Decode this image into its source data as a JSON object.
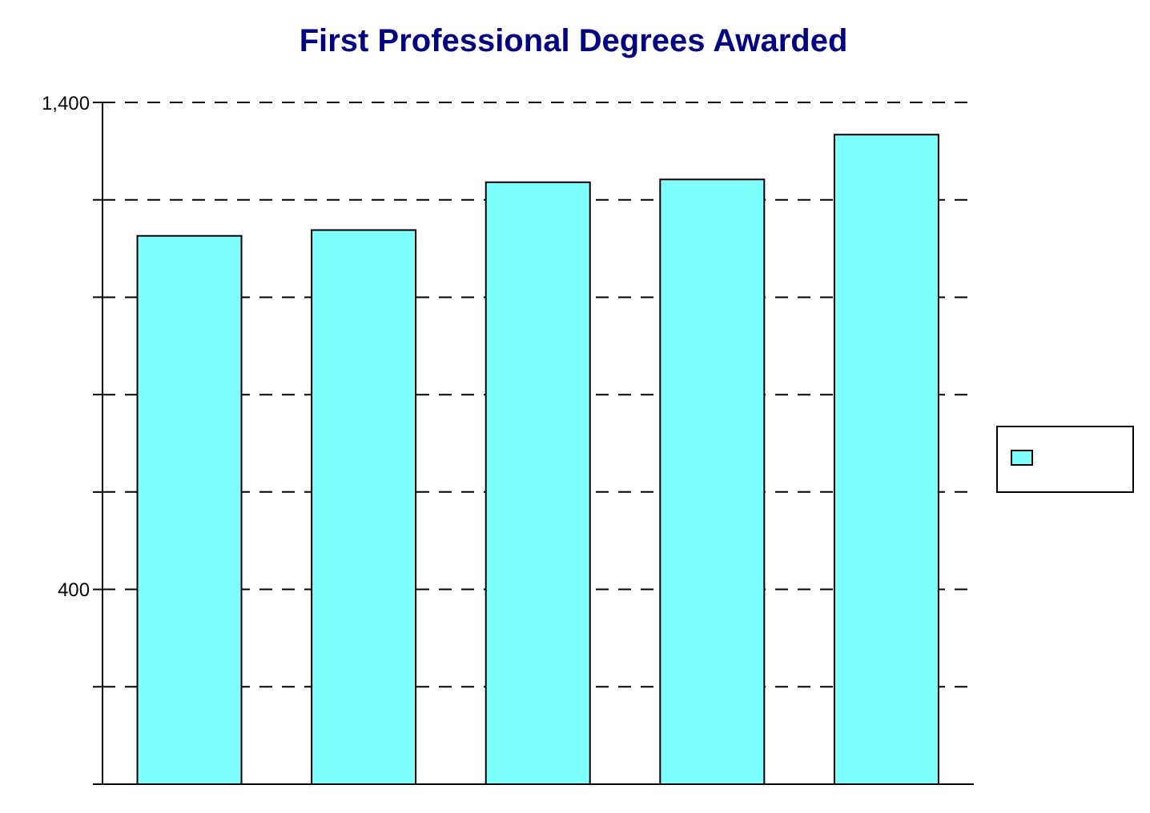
{
  "chart_data": {
    "type": "bar",
    "title": "First Professional Degrees Awarded",
    "categories": [
      null,
      null,
      null,
      null,
      null
    ],
    "series": [
      {
        "color": "#80ffff",
        "values": [
          1126,
          1138,
          1236,
          1242,
          1334
        ]
      }
    ],
    "ylim": [
      0,
      1400
    ],
    "yticks": [
      {
        "value": 0,
        "label": null
      },
      {
        "value": 200,
        "label": null
      },
      400,
      {
        "value": 600,
        "label": null
      },
      {
        "value": 800,
        "label": null
      },
      {
        "value": 1000,
        "label": null
      },
      {
        "value": 1200,
        "label": null
      },
      {
        "value": 1400,
        "label": "1,400"
      }
    ],
    "grid": "y"
  }
}
